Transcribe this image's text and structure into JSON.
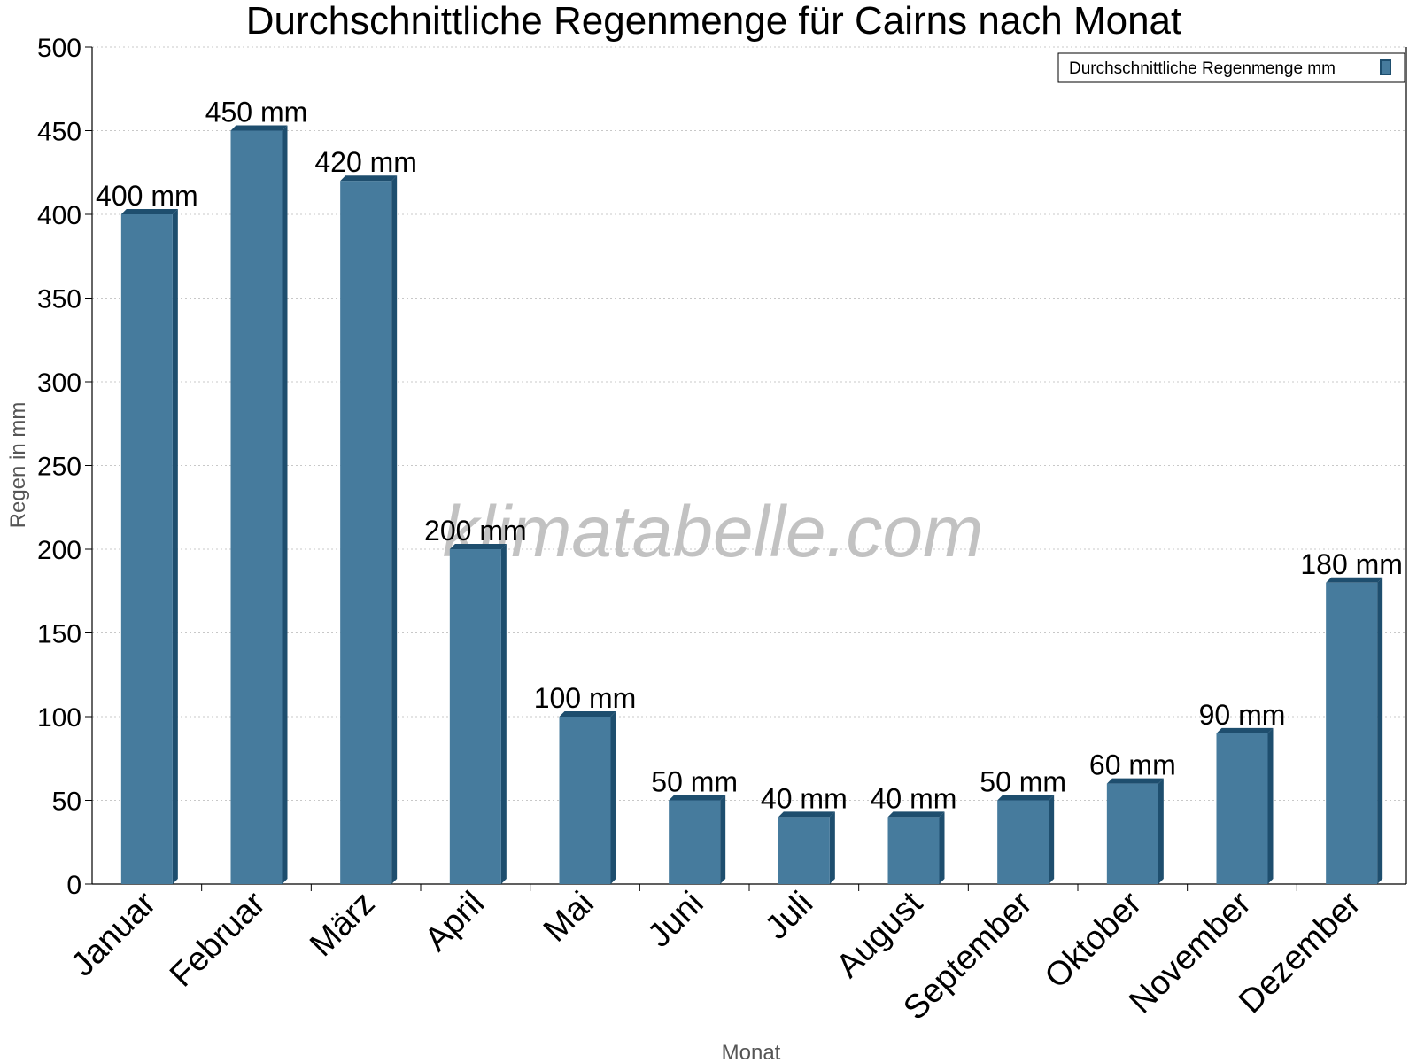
{
  "chart_data": {
    "type": "bar",
    "title": "Durchschnittliche Regenmenge für Cairns nach Monat",
    "xlabel": "Monat",
    "ylabel": "Regen in mm",
    "ylim": [
      0,
      500
    ],
    "ytick_step": 50,
    "grid": true,
    "legend_position": "top-right",
    "watermark": "klimatabelle.com",
    "categories": [
      "Januar",
      "Februar",
      "März",
      "April",
      "Mai",
      "Juni",
      "Juli",
      "August",
      "September",
      "Oktober",
      "November",
      "Dezember"
    ],
    "series": [
      {
        "name": "Durchschnittliche Regenmenge mm",
        "color": "#467b9d",
        "edge_color": "#1e4e6e",
        "values": [
          400,
          450,
          420,
          200,
          100,
          50,
          40,
          40,
          50,
          60,
          90,
          180
        ],
        "labels": [
          "400 mm",
          "450 mm",
          "420 mm",
          "200 mm",
          "100 mm",
          "50 mm",
          "40 mm",
          "40 mm",
          "50 mm",
          "60 mm",
          "90 mm",
          "180 mm"
        ]
      }
    ]
  }
}
